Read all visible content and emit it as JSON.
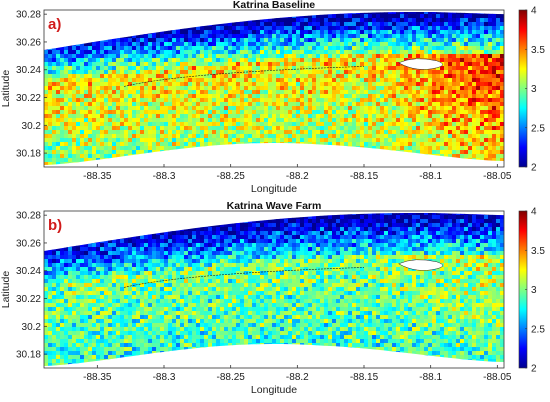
{
  "chart_data": [
    {
      "type": "heatmap",
      "panel_label": "a)",
      "title": "Katrina Baseline",
      "xlabel": "Longitude",
      "ylabel": "Latitude",
      "xlim": [
        -88.39,
        -88.045
      ],
      "ylim": [
        30.17,
        30.283
      ],
      "xticks": [
        -88.35,
        -88.3,
        -88.25,
        -88.2,
        -88.15,
        -88.1,
        -88.05
      ],
      "xtick_labels": [
        "-88.35",
        "-88.3",
        "-88.25",
        "-88.2",
        "-88.15",
        "-88.1",
        "-88.05"
      ],
      "yticks": [
        30.18,
        30.2,
        30.22,
        30.24,
        30.26,
        30.28
      ],
      "ytick_labels": [
        "30.18",
        "30.2",
        "30.22",
        "30.24",
        "30.26",
        "30.28"
      ],
      "colorbar": {
        "range": [
          2,
          4
        ],
        "ticks": [
          2,
          2.5,
          3,
          3.5,
          4
        ],
        "tick_labels": [
          "2",
          "2.5",
          "3",
          "3.5",
          "4"
        ],
        "colormap": "jet"
      },
      "field_levels": {
        "north": 2.05,
        "island": 3.3,
        "south": 3.0,
        "east_peak": 3.8
      }
    },
    {
      "type": "heatmap",
      "panel_label": "b)",
      "title": "Katrina Wave Farm",
      "xlabel": "Longitude",
      "ylabel": "Latitude",
      "xlim": [
        -88.39,
        -88.045
      ],
      "ylim": [
        30.17,
        30.283
      ],
      "xticks": [
        -88.35,
        -88.3,
        -88.25,
        -88.2,
        -88.15,
        -88.1,
        -88.05
      ],
      "xtick_labels": [
        "-88.35",
        "-88.3",
        "-88.25",
        "-88.2",
        "-88.15",
        "-88.1",
        "-88.05"
      ],
      "yticks": [
        30.18,
        30.2,
        30.22,
        30.24,
        30.26,
        30.28
      ],
      "ytick_labels": [
        "30.18",
        "30.2",
        "30.22",
        "30.24",
        "30.26",
        "30.28"
      ],
      "colorbar": {
        "range": [
          2,
          4
        ],
        "ticks": [
          2,
          2.5,
          3,
          3.5,
          4
        ],
        "tick_labels": [
          "2",
          "2.5",
          "3",
          "3.5",
          "4"
        ],
        "colormap": "jet"
      },
      "field_levels": {
        "north": 2.05,
        "island": 3.0,
        "south": 2.8,
        "east_peak": 3.15
      }
    }
  ]
}
